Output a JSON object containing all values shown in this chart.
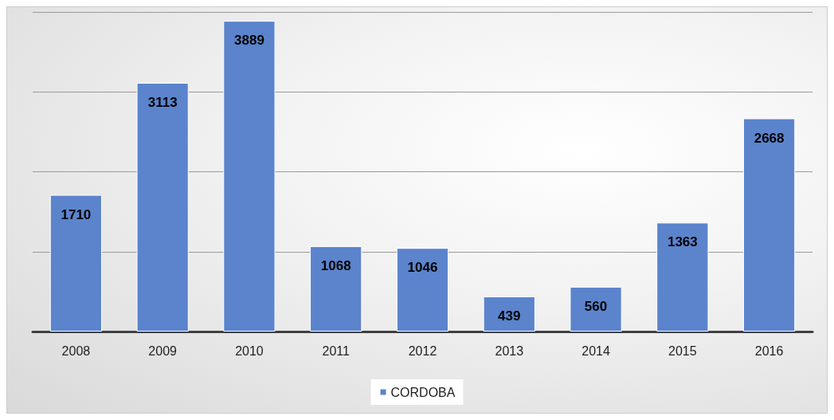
{
  "chart_data": {
    "type": "bar",
    "categories": [
      "2008",
      "2009",
      "2010",
      "2011",
      "2012",
      "2013",
      "2014",
      "2015",
      "2016"
    ],
    "series": [
      {
        "name": "CORDOBA",
        "color": "#5b84cc",
        "values": [
          1710,
          3113,
          3889,
          1068,
          1046,
          439,
          560,
          1363,
          2668
        ]
      }
    ],
    "grid": "y",
    "legend": "bottom",
    "data_labels": true,
    "tick_labels": "x"
  }
}
